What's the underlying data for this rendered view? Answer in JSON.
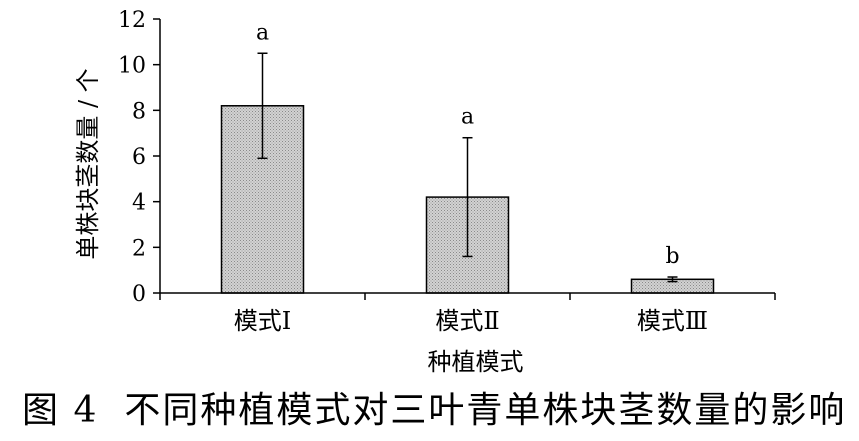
{
  "chart_data": {
    "type": "bar",
    "categories": [
      "模式Ⅰ",
      "模式Ⅱ",
      "模式Ⅲ"
    ],
    "values": [
      8.2,
      4.2,
      0.6
    ],
    "errors": [
      2.3,
      2.6,
      0.1
    ],
    "significance": [
      "a",
      "a",
      "b"
    ],
    "xlabel": "种植模式",
    "ylabel": "单株块茎数量 / 个",
    "ylim": [
      0,
      12
    ],
    "yticks": [
      "0",
      "2",
      "4",
      "6",
      "8",
      "10",
      "12"
    ],
    "grid": false,
    "bar_color": "#c8c8c8",
    "legend": "none"
  },
  "caption": {
    "number": "图 4",
    "text": "不同种植模式对三叶青单株块茎数量的影响"
  }
}
